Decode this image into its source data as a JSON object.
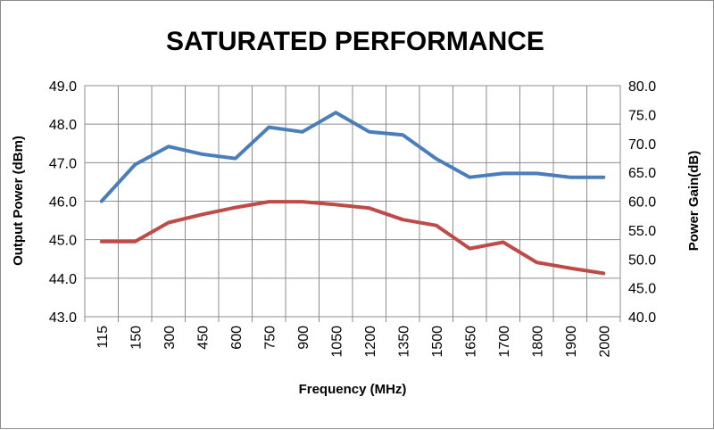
{
  "chart_data": {
    "type": "line",
    "title": "SATURATED PERFORMANCE",
    "xlabel": "Frequency (MHz)",
    "ylabel": "Output Power (dBm)",
    "y2label": "Power Gain(dB)",
    "categories": [
      "115",
      "150",
      "300",
      "450",
      "600",
      "750",
      "900",
      "1050",
      "1200",
      "1350",
      "1500",
      "1650",
      "1700",
      "1800",
      "1900",
      "2000"
    ],
    "ylim": [
      43.0,
      49.0
    ],
    "y2lim": [
      40.0,
      80.0
    ],
    "yticks": [
      "43.0",
      "44.0",
      "45.0",
      "46.0",
      "47.0",
      "48.0",
      "49.0"
    ],
    "y2ticks": [
      "40.0",
      "45.0",
      "50.0",
      "55.0",
      "60.0",
      "65.0",
      "70.0",
      "75.0",
      "80.0"
    ],
    "grid": true,
    "legend": "none",
    "series": [
      {
        "axis": "left",
        "color": "#4a7ebb",
        "values": [
          46.0,
          46.95,
          47.42,
          47.22,
          47.11,
          47.92,
          47.8,
          48.3,
          47.8,
          47.72,
          47.1,
          46.62,
          46.72,
          46.72,
          46.62,
          46.62
        ]
      },
      {
        "axis": "right",
        "color": "#be4b48",
        "values": [
          53.0,
          53.0,
          56.3,
          57.7,
          58.9,
          59.9,
          59.9,
          59.4,
          58.8,
          56.8,
          55.8,
          51.8,
          52.9,
          49.4,
          48.4,
          47.5
        ]
      }
    ]
  }
}
